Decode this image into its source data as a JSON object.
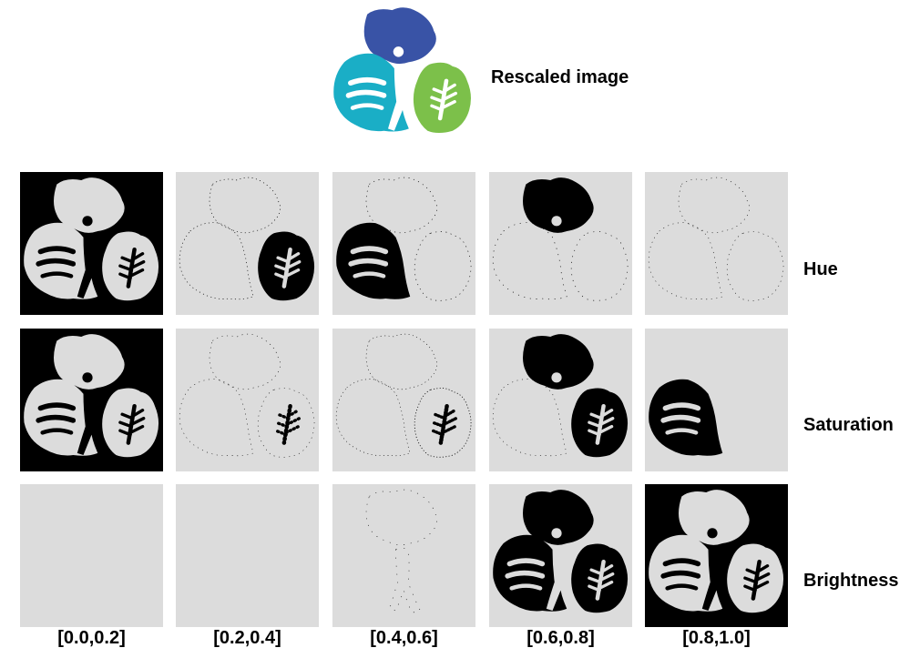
{
  "title": "Rescaled image",
  "rows": [
    "Hue",
    "Saturation",
    "Brightness"
  ],
  "columns": [
    "[0.0,0.2]",
    "[0.2,0.4]",
    "[0.4,0.6]",
    "[0.6,0.8]",
    "[0.8,1.0]"
  ],
  "colors": {
    "logo_blue": "#3953a6",
    "logo_cyan": "#1aaec6",
    "logo_green": "#7cc04a",
    "tile_gray": "#dcdcdc",
    "mask_black": "#000000",
    "mask_white": "#dcdcdc"
  },
  "tiles": [
    [
      {
        "name": "hue-0-0.2",
        "fill": "all",
        "desc": "almost entire logo"
      },
      {
        "name": "hue-0.2-0.4",
        "fill": "green",
        "desc": "green petal"
      },
      {
        "name": "hue-0.4-0.6",
        "fill": "cyan",
        "desc": "cyan petal"
      },
      {
        "name": "hue-0.6-0.8",
        "fill": "blue",
        "desc": "blue petal"
      },
      {
        "name": "hue-0.8-1.0",
        "fill": "outline",
        "desc": "sparse edge dots"
      }
    ],
    [
      {
        "name": "sat-0-0.2",
        "fill": "all",
        "desc": "background"
      },
      {
        "name": "sat-0.2-0.4",
        "fill": "outline",
        "desc": "edges"
      },
      {
        "name": "sat-0.4-0.6",
        "fill": "outline",
        "desc": "edges"
      },
      {
        "name": "sat-0.6-0.8",
        "fill": "blue-green",
        "desc": "blue + green"
      },
      {
        "name": "sat-0.8-1.0",
        "fill": "cyan",
        "desc": "cyan petal"
      }
    ],
    [
      {
        "name": "bri-0-0.2",
        "fill": "none",
        "desc": "empty"
      },
      {
        "name": "bri-0.2-0.4",
        "fill": "none",
        "desc": "empty"
      },
      {
        "name": "bri-0.4-0.6",
        "fill": "dots",
        "desc": "few dots"
      },
      {
        "name": "bri-0.6-0.8",
        "fill": "petals",
        "desc": "all petals"
      },
      {
        "name": "bri-0.8-1.0",
        "fill": "all",
        "desc": "background"
      }
    ]
  ]
}
